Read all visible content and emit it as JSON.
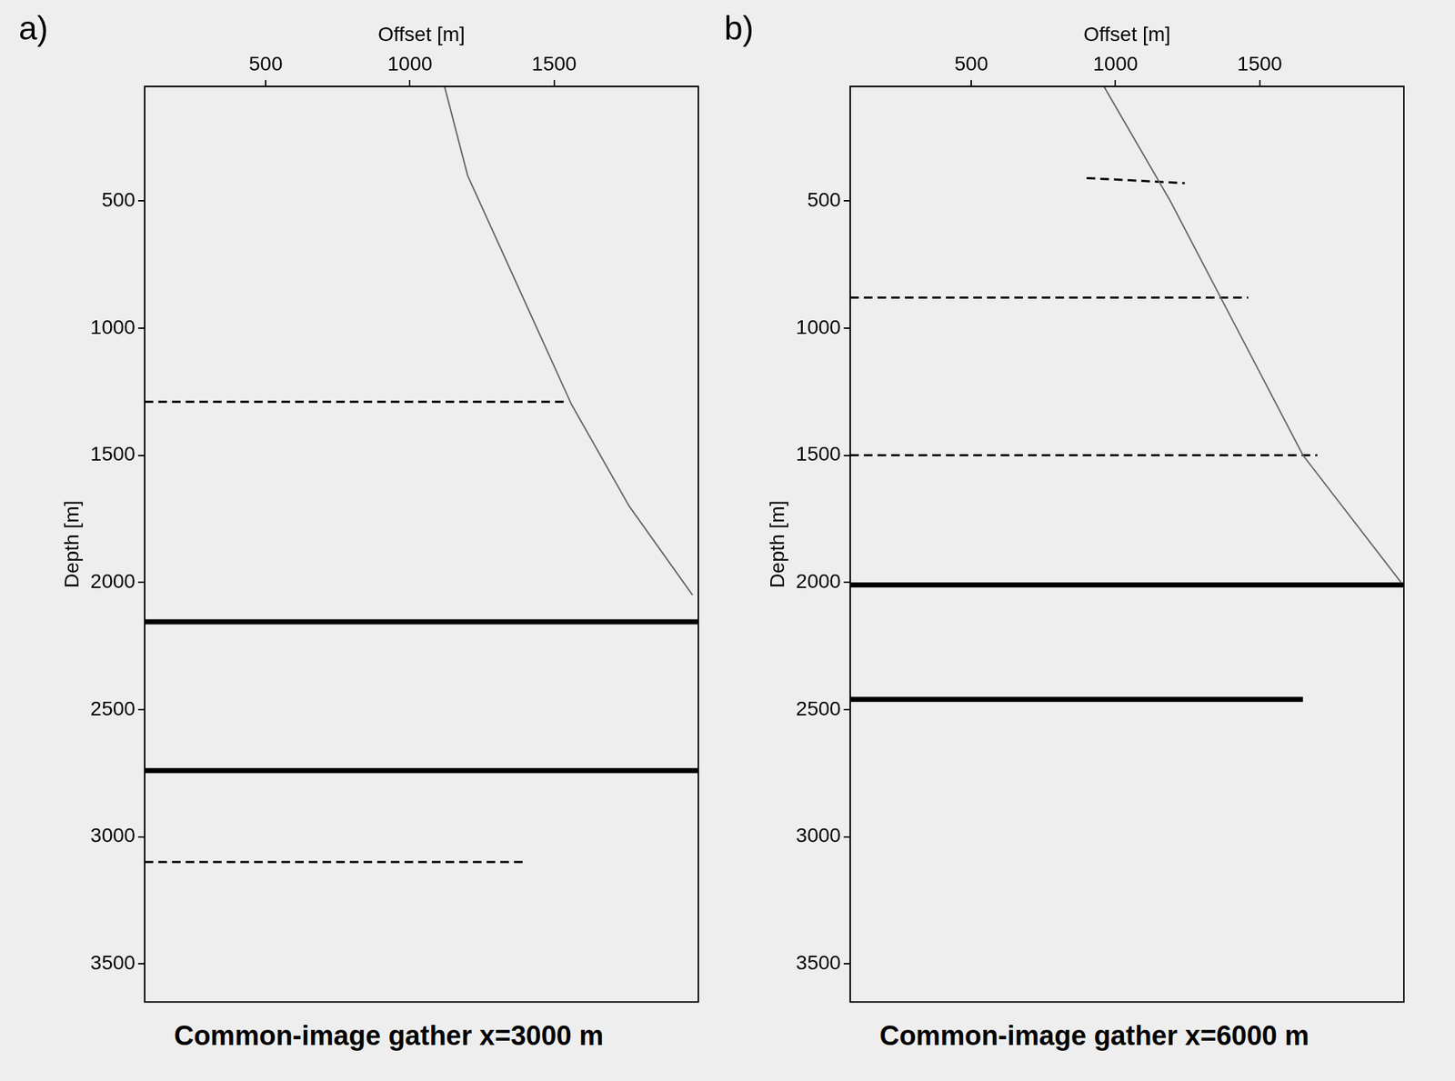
{
  "chart_data": [
    {
      "type": "line",
      "panel": "a)",
      "title": "Common-image gather x=3000 m",
      "x_label": "Offset [m]",
      "y_label": "Depth [m]",
      "xlim": [
        80,
        2000
      ],
      "xticks": [
        500,
        1000,
        1500
      ],
      "ylim": [
        3650,
        50
      ],
      "yticks": [
        500,
        1000,
        1500,
        2000,
        2500,
        3000,
        3500
      ],
      "grid": false,
      "series": [
        {
          "color": "#666666",
          "line_style": "solid",
          "x": [
            1120,
            1200,
            1400,
            1560,
            1760,
            1980
          ],
          "values": [
            50,
            400,
            900,
            1300,
            1700,
            2050
          ]
        },
        {
          "color": "#000000",
          "line_style": "dashed",
          "x": [
            80,
            1540
          ],
          "values": [
            1290,
            1290
          ]
        },
        {
          "color": "#000000",
          "line_style": "solid",
          "x": [
            80,
            2000
          ],
          "values": [
            2155,
            2155
          ]
        },
        {
          "color": "#000000",
          "line_style": "solid",
          "x": [
            80,
            2000
          ],
          "values": [
            2740,
            2740
          ]
        },
        {
          "color": "#000000",
          "line_style": "dashed",
          "x": [
            80,
            1400
          ],
          "values": [
            3100,
            3100
          ]
        }
      ]
    },
    {
      "type": "line",
      "panel": "b)",
      "title": "Common-image gather x=6000 m",
      "x_label": "Offset [m]",
      "y_label": "Depth [m]",
      "xlim": [
        80,
        2000
      ],
      "xticks": [
        500,
        1000,
        1500
      ],
      "ylim": [
        3650,
        50
      ],
      "yticks": [
        500,
        1000,
        1500,
        2000,
        2500,
        3000,
        3500
      ],
      "grid": false,
      "series": [
        {
          "color": "#666666",
          "line_style": "solid",
          "x": [
            960,
            1190,
            1420,
            1650,
            1990
          ],
          "values": [
            50,
            500,
            1000,
            1500,
            2000
          ]
        },
        {
          "color": "#000000",
          "line_style": "dashed",
          "x": [
            900,
            1240
          ],
          "values": [
            410,
            430
          ]
        },
        {
          "color": "#000000",
          "line_style": "dashed",
          "x": [
            80,
            1460
          ],
          "values": [
            880,
            880
          ]
        },
        {
          "color": "#000000",
          "line_style": "dashed",
          "x": [
            80,
            1700
          ],
          "values": [
            1500,
            1500
          ]
        },
        {
          "color": "#000000",
          "line_style": "solid",
          "x": [
            80,
            2000
          ],
          "values": [
            2010,
            2010
          ]
        },
        {
          "color": "#000000",
          "line_style": "solid",
          "x": [
            80,
            1650
          ],
          "values": [
            2460,
            2460
          ]
        }
      ]
    }
  ]
}
